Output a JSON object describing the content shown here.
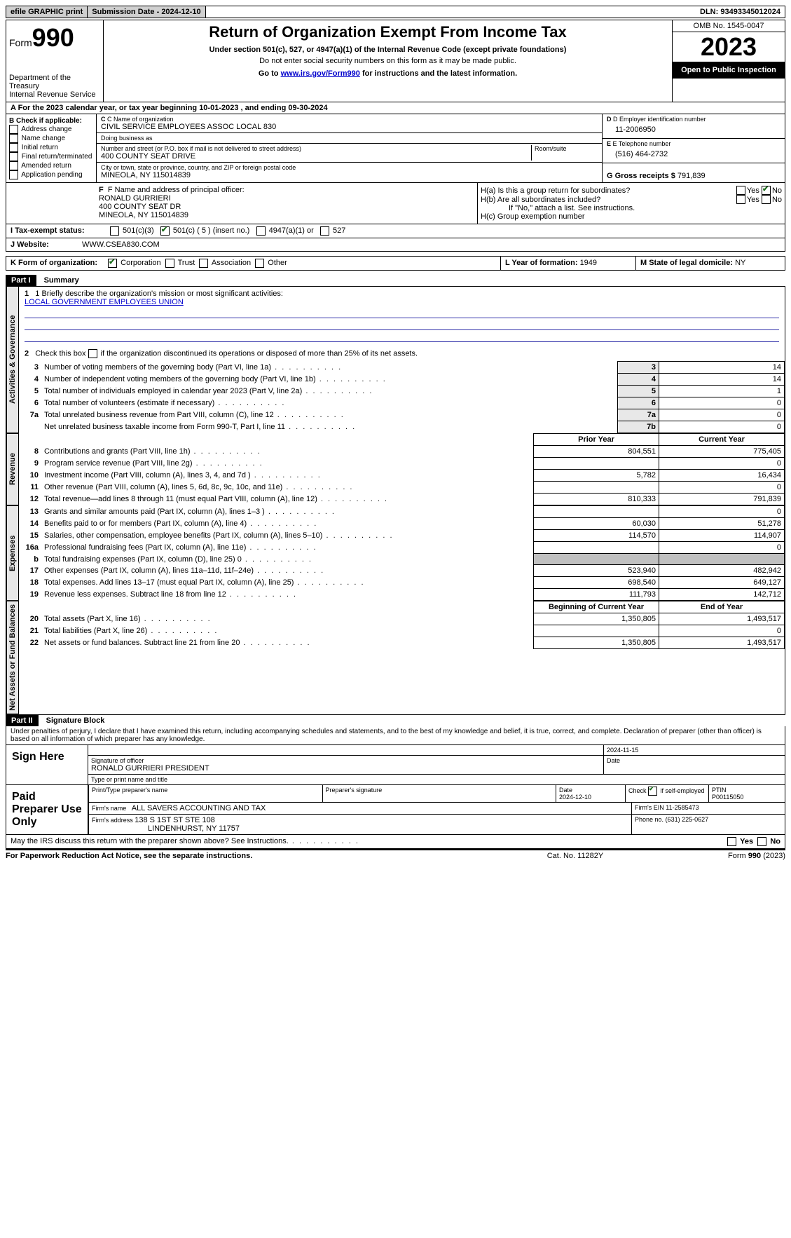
{
  "topbar": {
    "efile": "efile GRAPHIC print",
    "submission_label": "Submission Date - 2024-12-10",
    "dln_label": "DLN: 93493345012024"
  },
  "header": {
    "form_prefix": "Form",
    "form_number": "990",
    "dept": "Department of the Treasury",
    "irs": "Internal Revenue Service",
    "title": "Return of Organization Exempt From Income Tax",
    "subtitle": "Under section 501(c), 527, or 4947(a)(1) of the Internal Revenue Code (except private foundations)",
    "warn": "Do not enter social security numbers on this form as it may be made public.",
    "goto_prefix": "Go to ",
    "goto_link": "www.irs.gov/Form990",
    "goto_suffix": " for instructions and the latest information.",
    "omb": "OMB No. 1545-0047",
    "year": "2023",
    "inspection": "Open to Public Inspection"
  },
  "line_a": "A   For the 2023 calendar year, or tax year beginning 10-01-2023    , and ending 09-30-2024",
  "box_b": {
    "title": "B Check if applicable:",
    "items": [
      "Address change",
      "Name change",
      "Initial return",
      "Final return/terminated",
      "Amended return",
      "Application pending"
    ]
  },
  "box_c": {
    "name_label": "C Name of organization",
    "name": "CIVIL SERVICE EMPLOYEES ASSOC LOCAL 830",
    "dba_label": "Doing business as",
    "dba": "",
    "street_label": "Number and street (or P.O. box if mail is not delivered to street address)",
    "room_label": "Room/suite",
    "street": "400 COUNTY SEAT DRIVE",
    "city_label": "City or town, state or province, country, and ZIP or foreign postal code",
    "city": "MINEOLA, NY  115014839"
  },
  "box_d": {
    "label": "D Employer identification number",
    "value": "11-2006950"
  },
  "box_e": {
    "label": "E Telephone number",
    "value": "(516) 464-2732"
  },
  "box_g": {
    "label": "G Gross receipts $ ",
    "value": "791,839"
  },
  "box_f": {
    "label": "F  Name and address of principal officer:",
    "name": "RONALD GURRIERI",
    "street": "400 COUNTY SEAT DR",
    "city": "MINEOLA, NY  115014839"
  },
  "box_h": {
    "a_label": "H(a)  Is this a group return for subordinates?",
    "a_yes": "Yes",
    "a_no": "No",
    "a_checked": "no",
    "b_label": "H(b)  Are all subordinates included?",
    "b_yes": "Yes",
    "b_no": "No",
    "b_note": "If \"No,\" attach a list. See instructions.",
    "c_label": "H(c)  Group exemption number",
    "c_value": ""
  },
  "line_i": {
    "label": "I    Tax-exempt status:",
    "opts": [
      "501(c)(3)",
      "501(c) ( 5 ) (insert no.)",
      "4947(a)(1) or",
      "527"
    ],
    "checked_index": 1
  },
  "line_j": {
    "label": "J    Website:",
    "value": "WWW.CSEA830.COM"
  },
  "line_k": {
    "label": "K Form of organization:",
    "opts": [
      "Corporation",
      "Trust",
      "Association",
      "Other"
    ],
    "checked_index": 0
  },
  "line_l": {
    "label": "L Year of formation: ",
    "value": "1949"
  },
  "line_m": {
    "label": "M State of legal domicile: ",
    "value": "NY"
  },
  "part1": {
    "header": "Part I",
    "title": "Summary",
    "line1_label": "1   Briefly describe the organization's mission or most significant activities:",
    "line1_value": "LOCAL GOVERNMENT EMPLOYEES UNION",
    "line2_label": "2   Check this box      if the organization discontinued its operations or disposed of more than 25% of its net assets.",
    "groups": {
      "gov": "Activities & Governance",
      "rev": "Revenue",
      "exp": "Expenses",
      "net": "Net Assets or Fund Balances"
    },
    "col_prior": "Prior Year",
    "col_current": "Current Year",
    "col_begin": "Beginning of Current Year",
    "col_end": "End of Year",
    "rows_gov": [
      {
        "n": "3",
        "desc": "Number of voting members of the governing body (Part VI, line 1a)",
        "box": "3",
        "v": "14"
      },
      {
        "n": "4",
        "desc": "Number of independent voting members of the governing body (Part VI, line 1b)",
        "box": "4",
        "v": "14"
      },
      {
        "n": "5",
        "desc": "Total number of individuals employed in calendar year 2023 (Part V, line 2a)",
        "box": "5",
        "v": "1"
      },
      {
        "n": "6",
        "desc": "Total number of volunteers (estimate if necessary)",
        "box": "6",
        "v": "0"
      },
      {
        "n": "7a",
        "desc": "Total unrelated business revenue from Part VIII, column (C), line 12",
        "box": "7a",
        "v": "0"
      },
      {
        "n": "",
        "desc": "Net unrelated business taxable income from Form 990-T, Part I, line 11",
        "box": "7b",
        "v": "0"
      }
    ],
    "rows_rev": [
      {
        "n": "8",
        "desc": "Contributions and grants (Part VIII, line 1h)",
        "p": "804,551",
        "c": "775,405"
      },
      {
        "n": "9",
        "desc": "Program service revenue (Part VIII, line 2g)",
        "p": "",
        "c": "0"
      },
      {
        "n": "10",
        "desc": "Investment income (Part VIII, column (A), lines 3, 4, and 7d )",
        "p": "5,782",
        "c": "16,434"
      },
      {
        "n": "11",
        "desc": "Other revenue (Part VIII, column (A), lines 5, 6d, 8c, 9c, 10c, and 11e)",
        "p": "",
        "c": "0"
      },
      {
        "n": "12",
        "desc": "Total revenue—add lines 8 through 11 (must equal Part VIII, column (A), line 12)",
        "p": "810,333",
        "c": "791,839"
      }
    ],
    "rows_exp": [
      {
        "n": "13",
        "desc": "Grants and similar amounts paid (Part IX, column (A), lines 1–3 )",
        "p": "",
        "c": "0"
      },
      {
        "n": "14",
        "desc": "Benefits paid to or for members (Part IX, column (A), line 4)",
        "p": "60,030",
        "c": "51,278"
      },
      {
        "n": "15",
        "desc": "Salaries, other compensation, employee benefits (Part IX, column (A), lines 5–10)",
        "p": "114,570",
        "c": "114,907"
      },
      {
        "n": "16a",
        "desc": "Professional fundraising fees (Part IX, column (A), line 11e)",
        "p": "",
        "c": "0"
      },
      {
        "n": "b",
        "desc": "Total fundraising expenses (Part IX, column (D), line 25) 0",
        "p": "__shade__",
        "c": "__shade__"
      },
      {
        "n": "17",
        "desc": "Other expenses (Part IX, column (A), lines 11a–11d, 11f–24e)",
        "p": "523,940",
        "c": "482,942"
      },
      {
        "n": "18",
        "desc": "Total expenses. Add lines 13–17 (must equal Part IX, column (A), line 25)",
        "p": "698,540",
        "c": "649,127"
      },
      {
        "n": "19",
        "desc": "Revenue less expenses. Subtract line 18 from line 12",
        "p": "111,793",
        "c": "142,712"
      }
    ],
    "rows_net": [
      {
        "n": "20",
        "desc": "Total assets (Part X, line 16)",
        "p": "1,350,805",
        "c": "1,493,517"
      },
      {
        "n": "21",
        "desc": "Total liabilities (Part X, line 26)",
        "p": "",
        "c": "0"
      },
      {
        "n": "22",
        "desc": "Net assets or fund balances. Subtract line 21 from line 20",
        "p": "1,350,805",
        "c": "1,493,517"
      }
    ]
  },
  "part2": {
    "header": "Part II",
    "title": "Signature Block",
    "declaration": "Under penalties of perjury, I declare that I have examined this return, including accompanying schedules and statements, and to the best of my knowledge and belief, it is true, correct, and complete. Declaration of preparer (other than officer) is based on all information of which preparer has any knowledge.",
    "sign_here": "Sign Here",
    "sig_date": "2024-11-15",
    "sig_officer_label": "Signature of officer",
    "sig_officer": "RONALD GURRIERI PRESIDENT",
    "sig_type_label": "Type or print name and title",
    "sig_date_label": "Date",
    "paid": "Paid Preparer Use Only",
    "prep_name_label": "Print/Type preparer's name",
    "prep_sig_label": "Preparer's signature",
    "prep_date_label": "Date",
    "prep_date": "2024-12-10",
    "prep_self_label": "Check       if self-employed",
    "ptin_label": "PTIN",
    "ptin": "P00115050",
    "firm_name_label": "Firm's name",
    "firm_name": "ALL SAVERS ACCOUNTING AND TAX",
    "firm_ein_label": "Firm's EIN",
    "firm_ein": "11-2585473",
    "firm_addr_label": "Firm's address",
    "firm_addr1": "138 S 1ST ST STE 108",
    "firm_addr2": "LINDENHURST, NY  11757",
    "phone_label": "Phone no.",
    "phone": "(631) 225-0627",
    "may_irs": "May the IRS discuss this return with the preparer shown above? See Instructions.",
    "yes": "Yes",
    "no": "No"
  },
  "footer": {
    "left": "For Paperwork Reduction Act Notice, see the separate instructions.",
    "mid": "Cat. No. 11282Y",
    "right": "Form 990 (2023)"
  }
}
